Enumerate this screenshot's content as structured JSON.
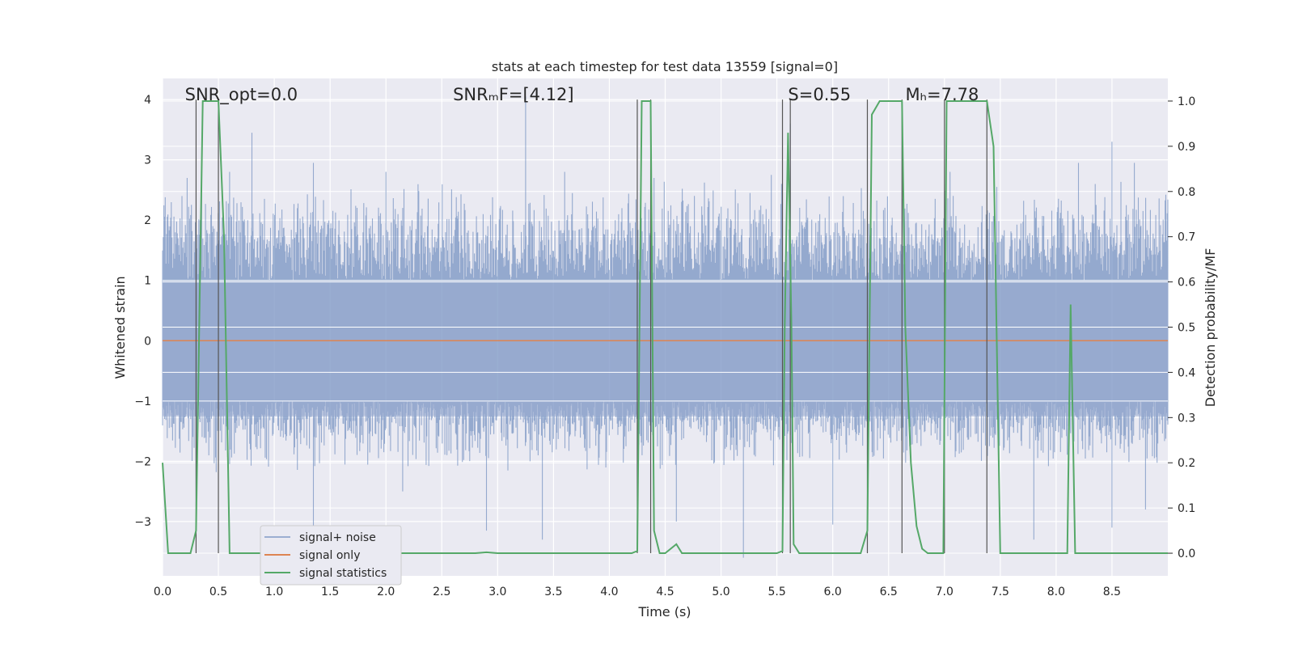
{
  "chart_data": {
    "type": "line",
    "title": "stats at each timestep for test data 13559 [signal=0]",
    "xlabel": "Time (s)",
    "ylabel": "Whitened strain",
    "y2label": "Detection probability/MF",
    "xlim": [
      0,
      9.0
    ],
    "ylim": [
      -3.9,
      4.35
    ],
    "y2lim": [
      -0.05,
      1.05
    ],
    "xticks": [
      "0.0",
      "0.5",
      "1.0",
      "1.5",
      "2.0",
      "2.5",
      "3.0",
      "3.5",
      "4.0",
      "4.5",
      "5.0",
      "5.5",
      "6.0",
      "6.5",
      "7.0",
      "7.5",
      "8.0",
      "8.5"
    ],
    "yticks": [
      "4",
      "3",
      "2",
      "1",
      "0",
      "−1",
      "−2",
      "−3"
    ],
    "y2ticks": [
      "1.0",
      "0.9",
      "0.8",
      "0.7",
      "0.6",
      "0.5",
      "0.4",
      "0.3",
      "0.2",
      "0.1",
      "0.0"
    ],
    "grid": true,
    "legend_position": "lower-left",
    "annotations": [
      {
        "id": "snr-opt",
        "text": "SNR_opt=0.0",
        "x": 0.2
      },
      {
        "id": "snr-mf",
        "text": "SNRₘF=[4.12]",
        "x": 2.6
      },
      {
        "id": "s-value",
        "text": "S=0.55",
        "x": 5.6
      },
      {
        "id": "mc-value",
        "text": "Mₕ=7.78",
        "x": 6.65
      }
    ],
    "noise_spikes": {
      "description_free": true,
      "upper_env": 1.75,
      "lower_env": -1.3,
      "band": 1.0,
      "peaks": [
        [
          0.05,
          1.9
        ],
        [
          0.22,
          2.7
        ],
        [
          0.35,
          2.8
        ],
        [
          0.6,
          2.8
        ],
        [
          0.8,
          2.5
        ],
        [
          0.8,
          3.45
        ],
        [
          1.35,
          2.95
        ],
        [
          2.0,
          2.8
        ],
        [
          3.25,
          4.05
        ],
        [
          3.6,
          2.8
        ],
        [
          4.4,
          2.7
        ],
        [
          5.45,
          2.75
        ],
        [
          5.62,
          3.6
        ],
        [
          7.05,
          2.8
        ],
        [
          8.2,
          2.95
        ],
        [
          8.35,
          2.6
        ],
        [
          8.5,
          3.3
        ],
        [
          8.7,
          2.95
        ]
      ],
      "troughs": [
        [
          0.3,
          -2.75
        ],
        [
          1.35,
          -3.1
        ],
        [
          2.15,
          -2.5
        ],
        [
          2.9,
          -3.15
        ],
        [
          3.4,
          -3.3
        ],
        [
          4.6,
          -3.0
        ],
        [
          5.2,
          -3.6
        ],
        [
          6.0,
          -3.05
        ],
        [
          7.8,
          -3.3
        ],
        [
          8.5,
          -3.1
        ],
        [
          8.8,
          -2.8
        ]
      ]
    },
    "series": [
      {
        "name": "signal+ noise",
        "color": "#4c72b0",
        "opacity": 0.5
      },
      {
        "name": "signal only",
        "color": "#dd8452",
        "x": [
          0.0,
          9.0
        ],
        "y": [
          0,
          0
        ]
      },
      {
        "name": "signal statistics",
        "color": "#55a868",
        "x": [
          0.0,
          0.05,
          0.1,
          0.25,
          0.3,
          0.36,
          0.4,
          0.45,
          0.5,
          0.55,
          0.6,
          0.62,
          0.65,
          0.7,
          2.8,
          2.9,
          3.0,
          4.2,
          4.25,
          4.29,
          4.32,
          4.37,
          4.4,
          4.45,
          4.5,
          4.6,
          4.65,
          4.7,
          4.75,
          5.5,
          5.55,
          5.57,
          5.6,
          5.63,
          5.65,
          5.7,
          6.25,
          6.31,
          6.35,
          6.42,
          6.5,
          6.62,
          6.65,
          6.7,
          6.75,
          6.8,
          6.85,
          6.9,
          6.99,
          7.02,
          7.06,
          7.2,
          7.38,
          7.44,
          7.5,
          7.55,
          8.05,
          8.1,
          8.13,
          8.17,
          8.2,
          9.0
        ],
        "y": [
          0.2,
          0.0,
          0.0,
          0.0,
          0.05,
          1.0,
          1.0,
          1.0,
          1.0,
          0.7,
          0.0,
          0.0,
          0.0,
          0.0,
          0.0,
          0.002,
          0.0,
          0.0,
          0.005,
          1.0,
          1.0,
          1.0,
          0.05,
          0.0,
          0.0,
          0.02,
          0.0,
          0.0,
          0.0,
          0.0,
          0.005,
          0.5,
          0.93,
          0.5,
          0.02,
          0.0,
          0.0,
          0.05,
          0.97,
          1.0,
          1.0,
          1.0,
          0.5,
          0.2,
          0.06,
          0.01,
          0.0,
          0.0,
          0.0,
          1.0,
          1.0,
          1.0,
          1.0,
          0.9,
          0.0,
          0.0,
          0.0,
          0.0,
          0.55,
          0.0,
          0.0,
          0.0
        ]
      }
    ],
    "vertical_lines_x": [
      0.3,
      0.5,
      4.25,
      4.37,
      5.55,
      5.62,
      6.31,
      6.62,
      7.0,
      7.38
    ]
  }
}
